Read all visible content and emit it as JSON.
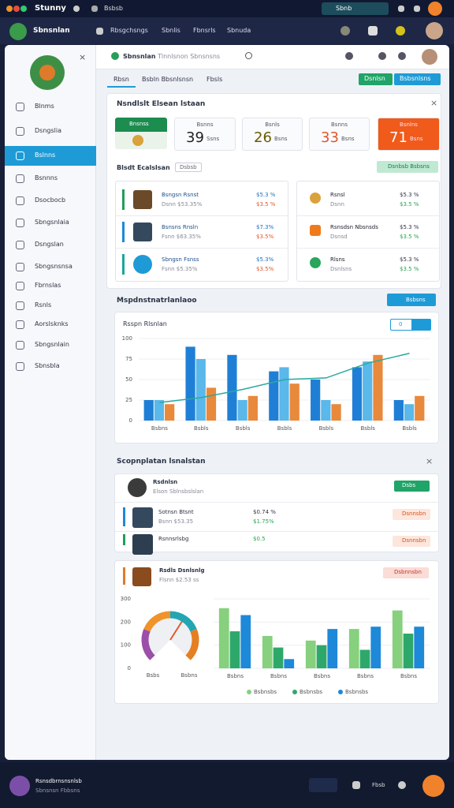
{
  "topbar": {
    "app": "Stunny",
    "tab": "Bsbsb",
    "lang": "Sbnb"
  },
  "navbar": {
    "title": "Sbnsnlan",
    "items": [
      "Rbsgchsngs",
      "Sbnlis",
      "Fbnsrls",
      "Sbnuda"
    ]
  },
  "sidebar": {
    "items": [
      "Blnms",
      "Dsngslia",
      "Bslnns",
      "Bsnnns",
      "Dsocbocb",
      "Sbngsnlaia",
      "Dsngslan",
      "Sbngsnsnsa",
      "Fbrnslas",
      "Rsnls",
      "Aorslsknks",
      "Sbngsnlain",
      "Sbnsbla"
    ],
    "active": 2
  },
  "header": {
    "title": "Sbnsnlan",
    "search": "Tlnnlsnon Sbnsnsns"
  },
  "tabs": {
    "items": [
      "Rbsn",
      "Bsbln Bbsnlsnsn",
      "Fbsls"
    ],
    "active": 0,
    "buttons": [
      "Dsnlsn",
      "Bsbsnlsns"
    ]
  },
  "overview": {
    "title": "Nsndlslt Elsean lstaan",
    "badge": "Bnsnss",
    "kpis": [
      {
        "label": "Bsnns",
        "value": 39,
        "sub": "Ssns"
      },
      {
        "label": "Bsnls",
        "value": 26,
        "sub": "Bsns"
      },
      {
        "label": "Bsnns",
        "value": 33,
        "sub": "Bsns"
      },
      {
        "label": "Bsnlns",
        "value": 71,
        "sub": "Bsns"
      }
    ],
    "subtitle": "Blsdt Ecalslsan",
    "chip": "Dsbsb",
    "action": "Dsnbsb Bsbsns",
    "left_rows": [
      {
        "name": "Bsngsn Rsnst",
        "sub": "Dsnn $53.35%",
        "v1": "$5.3 %",
        "v2": "$3.5 %"
      },
      {
        "name": "Bsnsns Rnsln",
        "sub": "Fsnn $63.35%",
        "v1": "$7.3%",
        "v2": "$3.5%"
      },
      {
        "name": "Sbngsn Fsnss",
        "sub": "Fsnn $5.35%",
        "v1": "$5.3%",
        "v2": "$3.5%"
      }
    ],
    "right_rows": [
      {
        "name": "Rsnsl",
        "sub": "Dsnn",
        "v1": "$5.3 %",
        "v2": "$3.5 %"
      },
      {
        "name": "Rsnsdsn Nbsnsds",
        "sub": "Dsnsd",
        "v1": "$5.3 %",
        "v2": "$3.5 %"
      },
      {
        "name": "Rlsns",
        "sub": "Dsnlsns",
        "v1": "$5.3 %",
        "v2": "$3.5 %"
      }
    ]
  },
  "analytics": {
    "title": "Mspdnstnatrlanlaoo",
    "button": "Bsbsns",
    "toggle": "0"
  },
  "list": {
    "title": "Scopnplatan lsnalstan",
    "header": {
      "name": "Rsdnlsn",
      "sub": "Elson Sblnsbslslan",
      "button": "Dsbs"
    },
    "rows": [
      {
        "name": "Sotnsn Btsnt",
        "sub": "Bsnn $53.35",
        "v1": "$0.74 %",
        "v2": "$1.75%",
        "tag": "Dsnnsbn"
      },
      {
        "name": "Rsnnsrlsbg",
        "v1": "$0.5",
        "tag": "Dsnnsbn"
      }
    ],
    "card": {
      "name": "Rsdls Dsnlsnlg",
      "sub": "Flsnn $2.53 ss",
      "button": "Dsbnnsbn"
    }
  },
  "chart_data": [
    {
      "type": "bar",
      "title": "Rsspn Rlsnlan",
      "categories": [
        "Bsbns",
        "Bsbls",
        "Bsbls",
        "Bsbls",
        "Bsbls",
        "Bsbls",
        "Bsbls"
      ],
      "series": [
        {
          "color": "#1f7fd6",
          "values": [
            25,
            90,
            80,
            60,
            50,
            65,
            25
          ]
        },
        {
          "color": "#5ab8ea",
          "values": [
            25,
            75,
            25,
            65,
            25,
            72,
            20
          ]
        },
        {
          "color": "#e8893c",
          "values": [
            20,
            40,
            30,
            45,
            20,
            80,
            30
          ]
        },
        {
          "type": "line",
          "color": "#2aa9a0",
          "values": [
            22,
            28,
            38,
            50,
            52,
            70,
            82
          ]
        }
      ],
      "ylim": [
        0,
        100
      ],
      "yticks": [
        0,
        25,
        50,
        75,
        100
      ],
      "grid": true
    },
    {
      "type": "gauge",
      "value": 62,
      "min": 0,
      "max": 100,
      "colors": [
        "#9b4fa8",
        "#f0932b",
        "#22a6b3",
        "#e67e22"
      ],
      "categories": [
        "Bsbs",
        "Bsbns"
      ]
    },
    {
      "type": "bar",
      "categories": [
        "Bsbns",
        "Bsbns",
        "Bsbns",
        "Bsbns",
        "Bsbns"
      ],
      "series": [
        {
          "name": "Bsbnsbs",
          "color": "#86d07e",
          "values": [
            260,
            140,
            120,
            170,
            250
          ]
        },
        {
          "name": "Bsbnsbs",
          "color": "#2ea86a",
          "values": [
            160,
            90,
            100,
            80,
            150
          ]
        },
        {
          "name": "Bsbnsbs",
          "color": "#1e88d9",
          "values": [
            230,
            40,
            170,
            180,
            180
          ]
        }
      ],
      "ylim": [
        0,
        300
      ],
      "yticks": [
        0,
        100,
        200,
        300
      ],
      "grid": true
    }
  ],
  "footer": {
    "name": "Rsnsdbrnsnsnlsb",
    "sub": "Sbnsnsn Fbbsns",
    "label": "Fbsb"
  }
}
